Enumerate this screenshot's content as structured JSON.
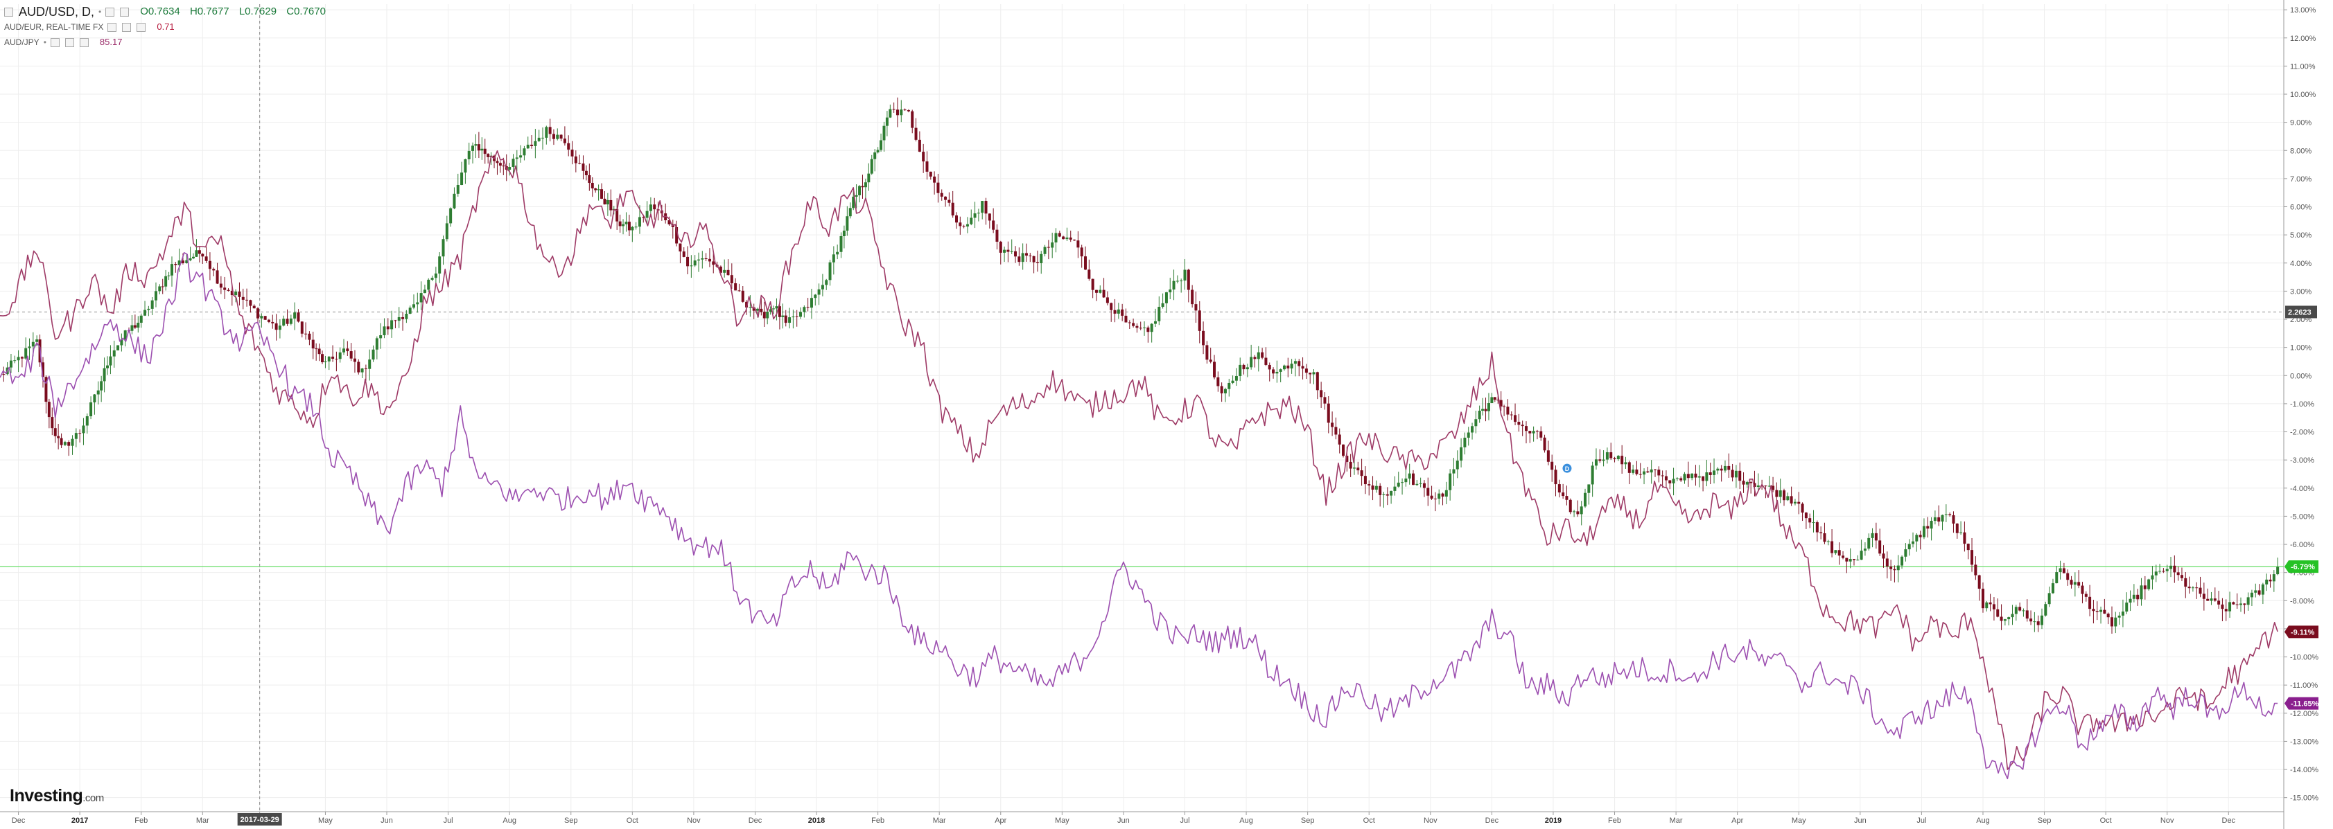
{
  "legend": {
    "main": {
      "symbol": "AUD/USD, D,",
      "open": "O0.7634",
      "high": "H0.7677",
      "low": "L0.7629",
      "close": "C0.7670"
    },
    "compare1": {
      "symbol": "AUD/EUR, REAL-TIME FX",
      "value": "0.71"
    },
    "compare2": {
      "symbol": "AUD/JPY",
      "value": "85.17"
    }
  },
  "brand": {
    "name": "Investing",
    "suffix": ".com"
  },
  "colors": {
    "up": "#2e7d32",
    "down": "#7a0c1e",
    "audeur": "#9e3a66",
    "audjpy": "#9c4fb0",
    "green_line": "#66dd66",
    "grid": "#eeeeee"
  },
  "chart_data": {
    "type": "line",
    "main_series_type": "candlestick",
    "y_unit": "percent change",
    "ylim": [
      -15.5,
      13.2
    ],
    "y_ticks": [
      "13.00%",
      "12.00%",
      "11.00%",
      "10.00%",
      "9.00%",
      "8.00%",
      "7.00%",
      "6.00%",
      "5.00%",
      "4.00%",
      "3.00%",
      "2.00%",
      "1.00%",
      "0.00%",
      "-1.00%",
      "-2.00%",
      "-3.00%",
      "-4.00%",
      "-5.00%",
      "-6.00%",
      "-7.00%",
      "-8.00%",
      "-9.00%",
      "-10.00%",
      "-11.00%",
      "-12.00%",
      "-13.00%",
      "-14.00%",
      "-15.00%"
    ],
    "x_ticks": [
      {
        "label": "Dec",
        "pos": 0.0
      },
      {
        "label": "2017",
        "pos": 1.0,
        "bold": true
      },
      {
        "label": "Feb",
        "pos": 2.0
      },
      {
        "label": "Mar",
        "pos": 3.0
      },
      {
        "label": "2017-03-29",
        "pos": 3.93,
        "highlight": true
      },
      {
        "label": "May",
        "pos": 5.0
      },
      {
        "label": "Jun",
        "pos": 6.0
      },
      {
        "label": "Jul",
        "pos": 7.0
      },
      {
        "label": "Aug",
        "pos": 8.0
      },
      {
        "label": "Sep",
        "pos": 9.0
      },
      {
        "label": "Oct",
        "pos": 10.0
      },
      {
        "label": "Nov",
        "pos": 11.0
      },
      {
        "label": "Dec",
        "pos": 12.0
      },
      {
        "label": "2018",
        "pos": 13.0,
        "bold": true
      },
      {
        "label": "Feb",
        "pos": 14.0
      },
      {
        "label": "Mar",
        "pos": 15.0
      },
      {
        "label": "Apr",
        "pos": 16.0
      },
      {
        "label": "May",
        "pos": 17.0
      },
      {
        "label": "Jun",
        "pos": 18.0
      },
      {
        "label": "Jul",
        "pos": 19.0
      },
      {
        "label": "Aug",
        "pos": 20.0
      },
      {
        "label": "Sep",
        "pos": 21.0
      },
      {
        "label": "Oct",
        "pos": 22.0
      },
      {
        "label": "Nov",
        "pos": 23.0
      },
      {
        "label": "Dec",
        "pos": 24.0
      },
      {
        "label": "2019",
        "pos": 25.0,
        "bold": true
      },
      {
        "label": "Feb",
        "pos": 26.0
      },
      {
        "label": "Mar",
        "pos": 27.0
      },
      {
        "label": "Apr",
        "pos": 28.0
      },
      {
        "label": "May",
        "pos": 29.0
      },
      {
        "label": "Jun",
        "pos": 30.0
      },
      {
        "label": "Jul",
        "pos": 31.0
      },
      {
        "label": "Aug",
        "pos": 32.0
      },
      {
        "label": "Sep",
        "pos": 33.0
      },
      {
        "label": "Oct",
        "pos": 34.0
      },
      {
        "label": "Nov",
        "pos": 35.0
      },
      {
        "label": "Dec",
        "pos": 36.0
      }
    ],
    "x_range": [
      -0.3,
      36.9
    ],
    "crosshair_x": 3.93,
    "crosshair_y": 2.26,
    "crosshair_y_label": "2.2623",
    "current_line_y": -6.79,
    "series": [
      {
        "name": "AUD/USD, D,",
        "style": "candles",
        "x": [
          -0.3,
          0.0,
          0.3,
          0.5,
          0.7,
          1.0,
          1.3,
          1.5,
          1.8,
          2.0,
          2.3,
          2.5,
          2.8,
          3.0,
          3.3,
          3.6,
          3.9,
          4.2,
          4.5,
          4.8,
          5.0,
          5.3,
          5.6,
          5.9,
          6.2,
          6.5,
          6.8,
          7.1,
          7.4,
          7.6,
          7.8,
          8.0,
          8.3,
          8.6,
          8.9,
          9.2,
          9.4,
          9.6,
          9.8,
          10.0,
          10.3,
          10.6,
          10.9,
          11.2,
          11.5,
          11.8,
          12.1,
          12.3,
          12.5,
          12.8,
          13.1,
          13.4,
          13.6,
          13.8,
          14.0,
          14.2,
          14.5,
          14.8,
          15.1,
          15.4,
          15.7,
          16.0,
          16.3,
          16.6,
          16.9,
          17.2,
          17.5,
          17.8,
          18.1,
          18.4,
          18.7,
          19.0,
          19.3,
          19.6,
          19.9,
          20.2,
          20.5,
          20.8,
          21.1,
          21.4,
          21.7,
          22.0,
          22.3,
          22.6,
          22.9,
          23.2,
          23.5,
          23.8,
          24.0,
          24.2,
          24.5,
          24.8,
          25.1,
          25.4,
          25.7,
          26.0,
          26.3,
          26.6,
          26.9,
          27.2,
          27.5,
          27.8,
          28.1,
          28.4,
          28.7,
          29.0,
          29.3,
          29.6,
          29.9,
          30.2,
          30.5,
          30.8,
          31.1,
          31.4,
          31.7,
          32.0,
          32.3,
          32.6,
          32.9,
          33.2,
          33.5,
          33.8,
          34.1,
          34.4,
          34.7,
          35.0,
          35.3,
          35.6,
          35.9,
          36.2,
          36.5,
          36.8
        ],
        "values": [
          0.0,
          0.6,
          1.2,
          -1.5,
          -2.6,
          -2.0,
          -0.5,
          0.8,
          1.6,
          2.0,
          3.1,
          3.9,
          4.2,
          4.4,
          3.2,
          2.8,
          2.2,
          1.7,
          2.1,
          1.0,
          0.4,
          0.9,
          0.1,
          1.5,
          2.1,
          2.5,
          3.8,
          6.4,
          8.3,
          7.9,
          7.6,
          7.4,
          8.1,
          8.7,
          8.4,
          7.2,
          6.6,
          6.1,
          5.4,
          5.2,
          6.0,
          5.5,
          3.9,
          4.2,
          3.6,
          2.7,
          2.1,
          2.5,
          1.8,
          2.3,
          3.2,
          4.9,
          6.2,
          7.0,
          8.1,
          9.4,
          9.3,
          7.3,
          6.2,
          5.2,
          6.1,
          4.5,
          4.2,
          4.1,
          4.9,
          4.8,
          3.2,
          2.5,
          1.7,
          1.5,
          2.9,
          3.7,
          1.1,
          -0.8,
          0.3,
          0.7,
          0.1,
          0.6,
          0.0,
          -1.9,
          -3.2,
          -3.9,
          -4.2,
          -3.5,
          -4.1,
          -4.4,
          -2.5,
          -1.3,
          -0.9,
          -1.1,
          -1.9,
          -2.2,
          -4.3,
          -5.0,
          -2.9,
          -2.8,
          -3.5,
          -3.3,
          -3.9,
          -3.5,
          -3.6,
          -3.3,
          -3.7,
          -3.9,
          -4.2,
          -4.5,
          -5.6,
          -6.3,
          -6.7,
          -5.6,
          -7.0,
          -6.1,
          -5.3,
          -4.9,
          -5.9,
          -8.1,
          -8.6,
          -8.3,
          -8.9,
          -6.9,
          -7.4,
          -8.3,
          -8.8,
          -8.1,
          -7.3,
          -6.8,
          -7.4,
          -7.9,
          -8.3,
          -8.1,
          -7.7,
          -6.8
        ]
      },
      {
        "name": "AUD/EUR, REAL-TIME FX",
        "style": "line",
        "x": [
          -0.3,
          0.0,
          0.3,
          0.6,
          0.9,
          1.2,
          1.5,
          1.8,
          2.1,
          2.4,
          2.7,
          3.0,
          3.3,
          3.6,
          3.9,
          4.2,
          4.5,
          4.8,
          5.1,
          5.4,
          5.7,
          6.0,
          6.3,
          6.6,
          6.9,
          7.2,
          7.5,
          7.8,
          8.1,
          8.4,
          8.7,
          9.0,
          9.3,
          9.6,
          9.9,
          10.2,
          10.5,
          10.8,
          11.1,
          11.4,
          11.7,
          12.0,
          12.3,
          12.6,
          12.9,
          13.2,
          13.5,
          13.8,
          14.1,
          14.4,
          14.7,
          15.0,
          15.3,
          15.6,
          15.9,
          16.2,
          16.5,
          16.8,
          17.1,
          17.4,
          17.7,
          18.0,
          18.3,
          18.6,
          18.9,
          19.2,
          19.5,
          19.8,
          20.1,
          20.4,
          20.7,
          21.0,
          21.3,
          21.6,
          21.9,
          22.2,
          22.5,
          22.8,
          23.1,
          23.4,
          23.7,
          24.0,
          24.3,
          24.6,
          24.9,
          25.2,
          25.5,
          25.8,
          26.1,
          26.4,
          26.7,
          27.0,
          27.3,
          27.6,
          27.9,
          28.2,
          28.5,
          28.8,
          29.1,
          29.4,
          29.7,
          30.0,
          30.3,
          30.6,
          30.9,
          31.2,
          31.5,
          31.8,
          32.1,
          32.4,
          32.7,
          33.0,
          33.3,
          33.6,
          33.9,
          34.2,
          34.5,
          34.8,
          35.1,
          35.4,
          35.7,
          36.0,
          36.3,
          36.6,
          36.8
        ],
        "values": [
          2.0,
          3.1,
          4.6,
          1.5,
          2.1,
          3.5,
          2.2,
          3.8,
          3.5,
          4.6,
          5.9,
          4.4,
          4.8,
          2.1,
          1.0,
          -0.5,
          -1.0,
          -1.6,
          0.3,
          -0.8,
          -0.4,
          -1.2,
          -0.3,
          2.5,
          3.2,
          4.2,
          6.5,
          7.8,
          7.3,
          5.1,
          3.8,
          4.2,
          6.1,
          5.4,
          6.5,
          5.4,
          5.9,
          4.5,
          5.4,
          4.1,
          2.2,
          2.5,
          2.3,
          4.3,
          6.2,
          5.3,
          6.4,
          5.9,
          3.7,
          1.9,
          1.2,
          -1.1,
          -2.0,
          -2.9,
          -1.5,
          -1.1,
          -0.9,
          -0.1,
          -0.6,
          -1.2,
          -0.8,
          -0.6,
          -0.2,
          -1.7,
          -1.4,
          -0.9,
          -2.4,
          -2.7,
          -1.5,
          -1.3,
          -1.0,
          -2.0,
          -4.2,
          -3.1,
          -2.2,
          -2.6,
          -3.0,
          -3.1,
          -2.7,
          -2.1,
          -0.8,
          0.4,
          -2.5,
          -4.2,
          -5.8,
          -5.4,
          -6.0,
          -4.9,
          -4.6,
          -5.2,
          -4.0,
          -4.8,
          -5.2,
          -4.5,
          -4.9,
          -3.9,
          -4.0,
          -5.6,
          -6.5,
          -8.2,
          -8.7,
          -8.8,
          -9.0,
          -8.2,
          -9.6,
          -8.7,
          -9.4,
          -8.5,
          -10.9,
          -13.8,
          -13.4,
          -11.6,
          -11.3,
          -12.6,
          -12.2,
          -12.5,
          -12.1,
          -12.1,
          -11.6,
          -11.3,
          -11.8,
          -10.7,
          -10.4,
          -9.3,
          -9.1
        ]
      },
      {
        "name": "AUD/JPY",
        "style": "line",
        "x": [
          -0.3,
          0.0,
          0.3,
          0.6,
          0.9,
          1.2,
          1.5,
          1.8,
          2.1,
          2.4,
          2.7,
          3.0,
          3.3,
          3.6,
          3.9,
          4.2,
          4.5,
          4.8,
          5.1,
          5.4,
          5.7,
          6.0,
          6.3,
          6.6,
          6.9,
          7.2,
          7.5,
          7.8,
          8.1,
          8.4,
          8.7,
          9.0,
          9.3,
          9.6,
          9.9,
          10.2,
          10.5,
          10.8,
          11.1,
          11.4,
          11.7,
          12.0,
          12.3,
          12.6,
          12.9,
          13.2,
          13.5,
          13.8,
          14.1,
          14.4,
          14.7,
          15.0,
          15.3,
          15.6,
          15.9,
          16.2,
          16.5,
          16.8,
          17.1,
          17.4,
          17.7,
          18.0,
          18.3,
          18.6,
          18.9,
          19.2,
          19.5,
          19.8,
          20.1,
          20.4,
          20.7,
          21.0,
          21.3,
          21.6,
          21.9,
          22.2,
          22.5,
          22.8,
          23.1,
          23.4,
          23.7,
          24.0,
          24.3,
          24.6,
          24.9,
          25.2,
          25.5,
          25.8,
          26.1,
          26.4,
          26.7,
          27.0,
          27.3,
          27.6,
          27.9,
          28.2,
          28.5,
          28.8,
          29.1,
          29.4,
          29.7,
          30.0,
          30.3,
          30.6,
          30.9,
          31.2,
          31.5,
          31.8,
          32.1,
          32.4,
          32.7,
          33.0,
          33.3,
          33.6,
          33.9,
          34.2,
          34.5,
          34.8,
          35.1,
          35.4,
          35.7,
          36.0,
          36.3,
          36.6,
          36.8
        ],
        "values": [
          0.3,
          -0.3,
          0.9,
          -1.1,
          -0.2,
          0.9,
          2.0,
          1.3,
          0.6,
          2.1,
          4.0,
          3.3,
          2.0,
          1.2,
          1.5,
          0.6,
          -0.7,
          -1.1,
          -2.9,
          -3.5,
          -4.6,
          -5.5,
          -4.0,
          -3.2,
          -3.9,
          -1.5,
          -3.8,
          -3.9,
          -4.4,
          -4.0,
          -4.3,
          -4.4,
          -4.0,
          -4.5,
          -3.7,
          -4.4,
          -4.7,
          -5.6,
          -6.1,
          -6.0,
          -7.6,
          -8.6,
          -8.9,
          -7.5,
          -6.9,
          -7.7,
          -6.4,
          -6.9,
          -7.1,
          -8.5,
          -9.5,
          -9.6,
          -10.4,
          -10.7,
          -10.0,
          -10.4,
          -10.8,
          -11.0,
          -10.4,
          -9.9,
          -8.5,
          -6.7,
          -7.8,
          -8.8,
          -9.4,
          -9.2,
          -9.5,
          -9.2,
          -9.4,
          -10.5,
          -10.9,
          -11.7,
          -12.2,
          -11.1,
          -11.3,
          -12.0,
          -11.8,
          -11.2,
          -10.8,
          -10.5,
          -9.8,
          -8.7,
          -9.4,
          -11.1,
          -11.0,
          -11.5,
          -10.6,
          -10.8,
          -10.5,
          -10.4,
          -10.6,
          -10.4,
          -10.9,
          -10.1,
          -9.9,
          -9.8,
          -10.3,
          -10.1,
          -11.0,
          -10.5,
          -11.0,
          -11.1,
          -12.2,
          -12.8,
          -12.0,
          -11.9,
          -11.3,
          -11.4,
          -14.0,
          -14.3,
          -13.4,
          -12.2,
          -11.6,
          -13.1,
          -12.6,
          -12.0,
          -12.4,
          -11.2,
          -11.8,
          -11.3,
          -12.1,
          -11.6,
          -11.2,
          -11.9,
          -11.65
        ]
      }
    ],
    "price_tags": [
      {
        "label": "-6.79%",
        "y": -6.79,
        "color": "#26c226"
      },
      {
        "label": "-9.11%",
        "y": -9.11,
        "color": "#7a0c1e"
      },
      {
        "label": "-11.65%",
        "y": -11.65,
        "color": "#8a1f8e"
      }
    ],
    "marker": {
      "label": "D",
      "x": 25.0,
      "y": -3.0
    }
  }
}
